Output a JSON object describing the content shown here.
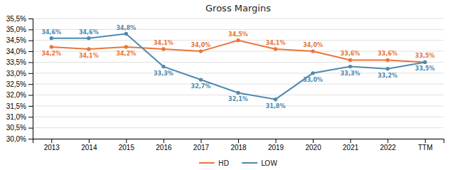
{
  "chart_data": {
    "type": "line",
    "title": "Gross Margins",
    "categories": [
      "2013",
      "2014",
      "2015",
      "2016",
      "2017",
      "2018",
      "2019",
      "2020",
      "2021",
      "2022",
      "TTM"
    ],
    "series": [
      {
        "name": "HD",
        "color": "#e8763a",
        "marker": "circle",
        "values": [
          34.2,
          34.1,
          34.2,
          34.1,
          34.0,
          34.5,
          34.1,
          34.0,
          33.6,
          33.6,
          33.5
        ],
        "value_labels": [
          "34,2%",
          "34,1%",
          "34,2%",
          "34,1%",
          "34,0%",
          "34,5%",
          "34,1%",
          "34,0%",
          "33,6%",
          "33,6%",
          "33,5%"
        ]
      },
      {
        "name": "LOW",
        "color": "#4e8ab0",
        "marker": "circle",
        "values": [
          34.6,
          34.6,
          34.8,
          33.3,
          32.7,
          32.1,
          31.8,
          33.0,
          33.3,
          33.2,
          33.5
        ],
        "value_labels": [
          "34,6%",
          "34,6%",
          "34,8%",
          "33,3%",
          "32,7%",
          "32,1%",
          "31,8%",
          "33,0%",
          "33,3%",
          "33,2%",
          "33,5%"
        ]
      }
    ],
    "ylim": [
      30.0,
      35.5
    ],
    "yticks": [
      {
        "value": 30.0,
        "label": "30,0%"
      },
      {
        "value": 30.5,
        "label": "30,5%"
      },
      {
        "value": 31.0,
        "label": "31,0%"
      },
      {
        "value": 31.5,
        "label": "31,5%"
      },
      {
        "value": 32.0,
        "label": "32,0%"
      },
      {
        "value": 32.5,
        "label": "32,5%"
      },
      {
        "value": 33.0,
        "label": "33,0%"
      },
      {
        "value": 33.5,
        "label": "33,5%"
      },
      {
        "value": 34.0,
        "label": "34,0%"
      },
      {
        "value": 34.5,
        "label": "34,5%"
      },
      {
        "value": 35.0,
        "label": "35,0%"
      },
      {
        "value": 35.5,
        "label": "35,5%"
      }
    ],
    "grid": true,
    "legend": "bottom",
    "data_labels": true
  }
}
